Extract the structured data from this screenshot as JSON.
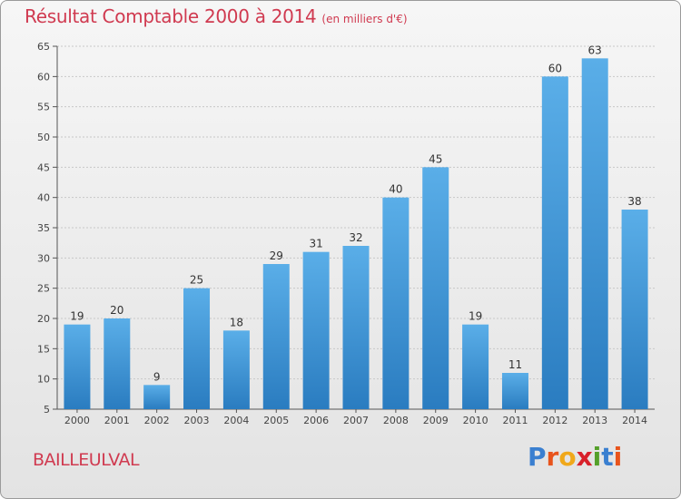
{
  "header": {
    "title": "Résultat Comptable 2000 à 2014",
    "unit": "(en milliers d'€)"
  },
  "footer": {
    "city": "BAILLEULVAL",
    "brand_letters": [
      "P",
      "r",
      "o",
      "x",
      "i",
      "t",
      "i"
    ],
    "brand_colors": [
      "#3a7fd0",
      "#e8541c",
      "#f0a81a",
      "#d8202a",
      "#55a02a",
      "#3a7fd0",
      "#e8541c"
    ]
  },
  "chart_data": {
    "type": "bar",
    "title": "Résultat Comptable 2000 à 2014",
    "subtitle": "(en milliers d'€)",
    "categories": [
      "2000",
      "2001",
      "2002",
      "2003",
      "2004",
      "2005",
      "2006",
      "2007",
      "2008",
      "2009",
      "2010",
      "2011",
      "2012",
      "2013",
      "2014"
    ],
    "values": [
      19,
      20,
      9,
      25,
      18,
      29,
      31,
      32,
      40,
      45,
      19,
      11,
      60,
      63,
      38
    ],
    "ylim": [
      5,
      65
    ],
    "yticks": [
      5,
      10,
      15,
      20,
      25,
      30,
      35,
      40,
      45,
      50,
      55,
      60,
      65
    ],
    "grid": true,
    "bar_color_top": "#5aaee8",
    "bar_color_bottom": "#2a7cc0",
    "grid_color": "#c8c8c8"
  }
}
